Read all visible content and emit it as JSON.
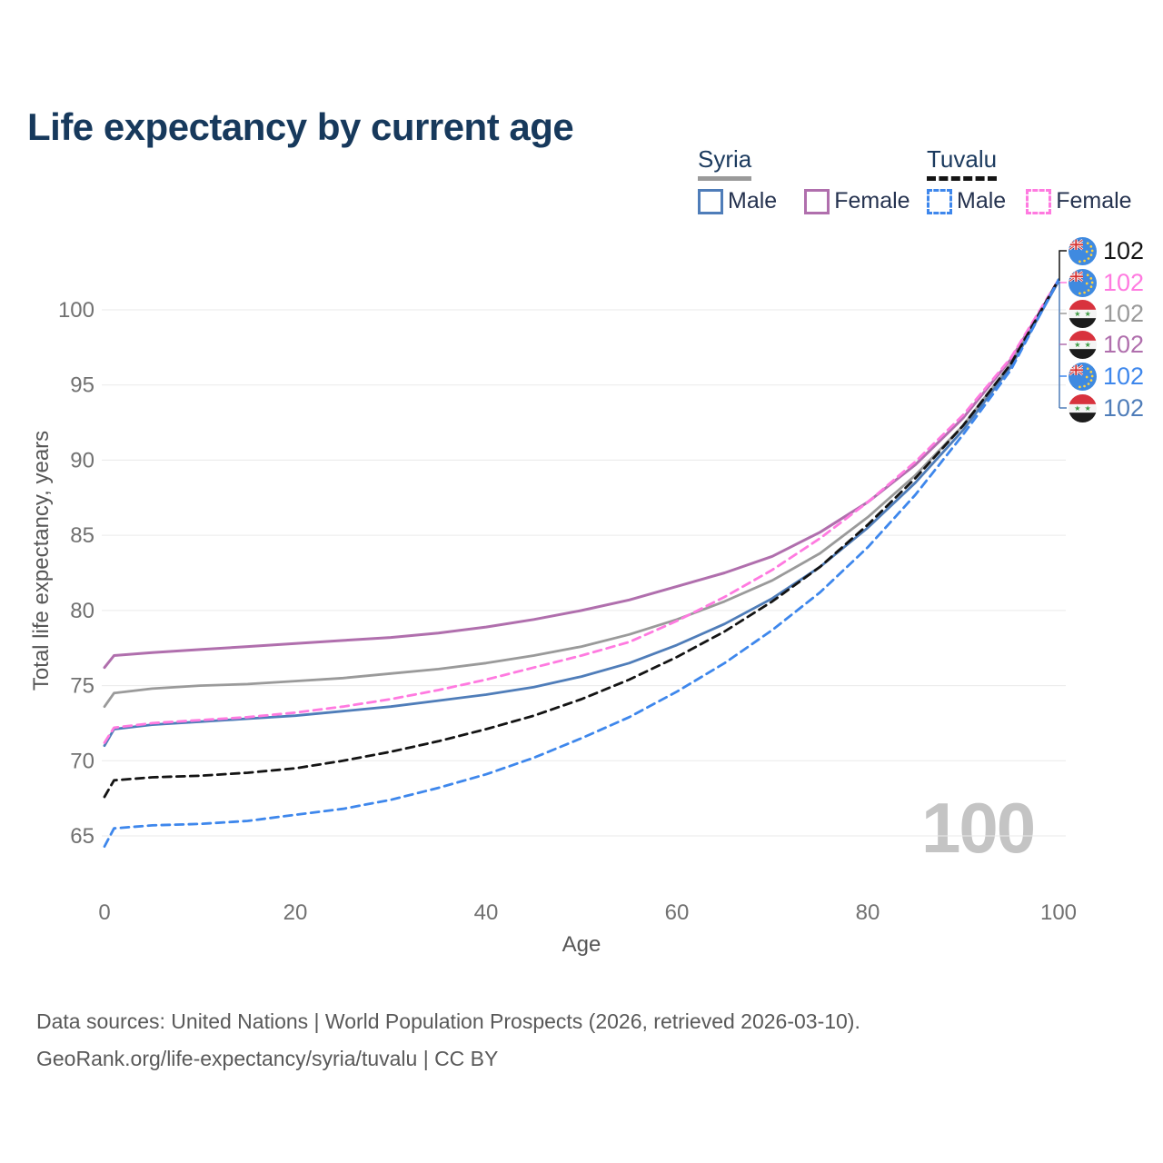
{
  "title": "Life expectancy by current age",
  "legend": {
    "syria": {
      "title": "Syria",
      "male_label": "Male",
      "female_label": "Female"
    },
    "tuvalu": {
      "title": "Tuvalu",
      "male_label": "Male",
      "female_label": "Female"
    }
  },
  "watermark": "100",
  "footer": {
    "line1": "Data sources: United Nations | World Population Prospects (2026, retrieved 2026-03-10).",
    "line2": "GeoRank.org/life-expectancy/syria/tuvalu | CC BY"
  },
  "chart_data": {
    "type": "line",
    "title": "Life expectancy by current age",
    "xlabel": "Age",
    "ylabel": "Total life expectancy, years",
    "xlim": [
      0,
      100
    ],
    "ylim": [
      63.5,
      103.5
    ],
    "x_ticks": [
      0,
      20,
      40,
      60,
      80,
      100
    ],
    "y_ticks": [
      65,
      70,
      75,
      80,
      85,
      90,
      95,
      100
    ],
    "grid": "horizontal",
    "legend_position": "top-right",
    "ages": [
      0,
      1,
      5,
      10,
      15,
      20,
      25,
      30,
      35,
      40,
      45,
      50,
      55,
      60,
      65,
      70,
      75,
      80,
      85,
      90,
      95,
      100
    ],
    "series": [
      {
        "id": "syria_female",
        "name": "Syria Female",
        "country": "Syria",
        "sex": "female",
        "color": "#b06fad",
        "dashed": false,
        "flag": "syria",
        "values": [
          76.2,
          77.0,
          77.2,
          77.4,
          77.6,
          77.8,
          78.0,
          78.2,
          78.5,
          78.9,
          79.4,
          80.0,
          80.7,
          81.6,
          82.5,
          83.6,
          85.2,
          87.2,
          89.7,
          92.8,
          96.7,
          101.9
        ]
      },
      {
        "id": "syria_total",
        "name": "Syria",
        "country": "Syria",
        "sex": "both",
        "color": "#9a9a9a",
        "dashed": false,
        "flag": "syria",
        "values": [
          73.6,
          74.5,
          74.8,
          75.0,
          75.1,
          75.3,
          75.5,
          75.8,
          76.1,
          76.5,
          77.0,
          77.6,
          78.4,
          79.4,
          80.6,
          82.0,
          83.8,
          86.2,
          89.0,
          92.3,
          96.4,
          101.9
        ]
      },
      {
        "id": "syria_male",
        "name": "Syria Male",
        "country": "Syria",
        "sex": "male",
        "color": "#4f7db9",
        "dashed": false,
        "flag": "syria",
        "values": [
          71.0,
          72.1,
          72.4,
          72.6,
          72.8,
          73.0,
          73.3,
          73.6,
          74.0,
          74.4,
          74.9,
          75.6,
          76.5,
          77.7,
          79.1,
          80.8,
          82.9,
          85.5,
          88.5,
          92.0,
          96.2,
          101.9
        ]
      },
      {
        "id": "tuvalu_female",
        "name": "Tuvalu Female",
        "country": "Tuvalu",
        "sex": "female",
        "color": "#ff7ae0",
        "dashed": true,
        "flag": "tuvalu",
        "values": [
          71.2,
          72.2,
          72.5,
          72.7,
          72.9,
          73.2,
          73.6,
          74.1,
          74.7,
          75.4,
          76.2,
          77.0,
          77.9,
          79.3,
          80.9,
          82.7,
          84.8,
          87.2,
          89.9,
          93.0,
          96.8,
          102.0
        ]
      },
      {
        "id": "tuvalu_total",
        "name": "Tuvalu",
        "country": "Tuvalu",
        "sex": "both",
        "color": "#141414",
        "dashed": true,
        "flag": "tuvalu",
        "values": [
          67.6,
          68.7,
          68.9,
          69.0,
          69.2,
          69.5,
          70.0,
          70.6,
          71.3,
          72.1,
          73.0,
          74.1,
          75.4,
          76.9,
          78.6,
          80.6,
          82.9,
          85.7,
          88.8,
          92.3,
          96.4,
          102.0
        ]
      },
      {
        "id": "tuvalu_male",
        "name": "Tuvalu Male",
        "country": "Tuvalu",
        "sex": "male",
        "color": "#3e87ec",
        "dashed": true,
        "flag": "tuvalu",
        "values": [
          64.3,
          65.5,
          65.7,
          65.8,
          66.0,
          66.4,
          66.8,
          67.4,
          68.2,
          69.1,
          70.2,
          71.5,
          72.9,
          74.6,
          76.5,
          78.7,
          81.2,
          84.2,
          87.7,
          91.7,
          96.0,
          102.0
        ]
      }
    ],
    "end_labels": [
      {
        "series": "tuvalu_total",
        "flag": "tuvalu",
        "value": "102",
        "color": "#141414"
      },
      {
        "series": "tuvalu_female",
        "flag": "tuvalu",
        "value": "102",
        "color": "#ff7ae0"
      },
      {
        "series": "syria_total",
        "flag": "syria",
        "value": "102",
        "color": "#9a9a9a"
      },
      {
        "series": "syria_female",
        "flag": "syria",
        "value": "102",
        "color": "#b06fad"
      },
      {
        "series": "tuvalu_male",
        "flag": "tuvalu",
        "value": "102",
        "color": "#3e87ec"
      },
      {
        "series": "syria_male",
        "flag": "syria",
        "value": "102",
        "color": "#4f7db9"
      }
    ]
  }
}
